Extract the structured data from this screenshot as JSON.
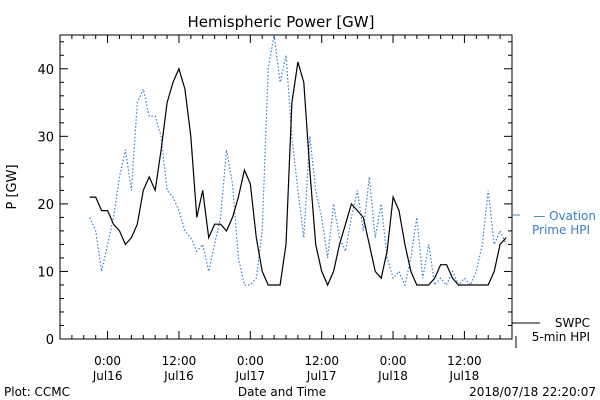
{
  "chart_data": {
    "type": "line",
    "title": "Hemispheric Power [GW]",
    "xlabel": "Date and Time",
    "ylabel": "P [GW]",
    "ylim": [
      0,
      45
    ],
    "xlim": [
      -8,
      68
    ],
    "yticks": [
      0,
      10,
      20,
      30,
      40
    ],
    "xticks": [
      {
        "x": 0,
        "time": "0:00",
        "date": "Jul16"
      },
      {
        "x": 12,
        "time": "12:00",
        "date": "Jul16"
      },
      {
        "x": 24,
        "time": "0:00",
        "date": "Jul17"
      },
      {
        "x": 36,
        "time": "12:00",
        "date": "Jul17"
      },
      {
        "x": 48,
        "time": "0:00",
        "date": "Jul18"
      },
      {
        "x": 60,
        "time": "12:00",
        "date": "Jul18"
      }
    ],
    "series": [
      {
        "name": "SWPC 5-min HPI",
        "name_line1": "SWPC",
        "name_line2": "5-min HPI",
        "color": "#000000",
        "style": "solid",
        "points": [
          [
            -3,
            21
          ],
          [
            -2,
            21
          ],
          [
            -1,
            19
          ],
          [
            0,
            19
          ],
          [
            1,
            17
          ],
          [
            2,
            16
          ],
          [
            3,
            14
          ],
          [
            4,
            15
          ],
          [
            5,
            17
          ],
          [
            6,
            22
          ],
          [
            7,
            24
          ],
          [
            8,
            22
          ],
          [
            9,
            28
          ],
          [
            10,
            35
          ],
          [
            11,
            38
          ],
          [
            12,
            40
          ],
          [
            13,
            37
          ],
          [
            14,
            30
          ],
          [
            15,
            18
          ],
          [
            16,
            22
          ],
          [
            17,
            15
          ],
          [
            18,
            17
          ],
          [
            19,
            17
          ],
          [
            20,
            16
          ],
          [
            21,
            18
          ],
          [
            22,
            21
          ],
          [
            23,
            25
          ],
          [
            24,
            23
          ],
          [
            25,
            15
          ],
          [
            26,
            10
          ],
          [
            27,
            8
          ],
          [
            28,
            8
          ],
          [
            29,
            8
          ],
          [
            30,
            14
          ],
          [
            31,
            35
          ],
          [
            32,
            41
          ],
          [
            33,
            38
          ],
          [
            34,
            25
          ],
          [
            35,
            14
          ],
          [
            36,
            10
          ],
          [
            37,
            8
          ],
          [
            38,
            10
          ],
          [
            39,
            14
          ],
          [
            40,
            17
          ],
          [
            41,
            20
          ],
          [
            42,
            19
          ],
          [
            43,
            18
          ],
          [
            44,
            14
          ],
          [
            45,
            10
          ],
          [
            46,
            9
          ],
          [
            47,
            13
          ],
          [
            48,
            21
          ],
          [
            49,
            19
          ],
          [
            50,
            14
          ],
          [
            51,
            10
          ],
          [
            52,
            8
          ],
          [
            53,
            8
          ],
          [
            54,
            8
          ],
          [
            55,
            9
          ],
          [
            56,
            11
          ],
          [
            57,
            11
          ],
          [
            58,
            9
          ],
          [
            59,
            8
          ],
          [
            60,
            8
          ],
          [
            61,
            8
          ],
          [
            62,
            8
          ],
          [
            63,
            8
          ],
          [
            64,
            8
          ],
          [
            65,
            10
          ],
          [
            66,
            14
          ],
          [
            67,
            15
          ]
        ]
      },
      {
        "name": "Ovation Prime HPI",
        "name_line1": "— Ovation",
        "name_line2": "Prime HPI",
        "color": "#3a7fc4",
        "style": "dotted",
        "points": [
          [
            -3,
            18
          ],
          [
            -2,
            16
          ],
          [
            -1,
            10
          ],
          [
            0,
            14
          ],
          [
            1,
            18
          ],
          [
            2,
            24
          ],
          [
            3,
            28
          ],
          [
            4,
            22
          ],
          [
            5,
            35
          ],
          [
            6,
            37
          ],
          [
            7,
            33
          ],
          [
            8,
            33
          ],
          [
            9,
            30
          ],
          [
            10,
            22
          ],
          [
            11,
            21
          ],
          [
            12,
            19
          ],
          [
            13,
            16
          ],
          [
            14,
            15
          ],
          [
            15,
            13
          ],
          [
            16,
            14
          ],
          [
            17,
            10
          ],
          [
            18,
            14
          ],
          [
            19,
            18
          ],
          [
            20,
            28
          ],
          [
            21,
            23
          ],
          [
            22,
            12
          ],
          [
            23,
            8
          ],
          [
            24,
            8
          ],
          [
            25,
            9
          ],
          [
            26,
            16
          ],
          [
            27,
            40
          ],
          [
            28,
            45
          ],
          [
            29,
            38
          ],
          [
            30,
            42
          ],
          [
            31,
            30
          ],
          [
            32,
            22
          ],
          [
            33,
            15
          ],
          [
            34,
            30
          ],
          [
            35,
            22
          ],
          [
            36,
            18
          ],
          [
            37,
            12
          ],
          [
            38,
            20
          ],
          [
            39,
            15
          ],
          [
            40,
            13
          ],
          [
            41,
            18
          ],
          [
            42,
            22
          ],
          [
            43,
            16
          ],
          [
            44,
            24
          ],
          [
            45,
            15
          ],
          [
            46,
            20
          ],
          [
            47,
            12
          ],
          [
            48,
            9
          ],
          [
            49,
            10
          ],
          [
            50,
            8
          ],
          [
            51,
            12
          ],
          [
            52,
            18
          ],
          [
            53,
            9
          ],
          [
            54,
            14
          ],
          [
            55,
            8
          ],
          [
            56,
            9
          ],
          [
            57,
            8
          ],
          [
            58,
            10
          ],
          [
            59,
            8
          ],
          [
            60,
            9
          ],
          [
            61,
            8
          ],
          [
            62,
            10
          ],
          [
            63,
            14
          ],
          [
            64,
            22
          ],
          [
            65,
            14
          ],
          [
            66,
            16
          ],
          [
            67,
            14
          ]
        ]
      }
    ]
  },
  "footer": {
    "plot_credit": "Plot: CCMC",
    "timestamp": "2018/07/18 22:20:07"
  }
}
